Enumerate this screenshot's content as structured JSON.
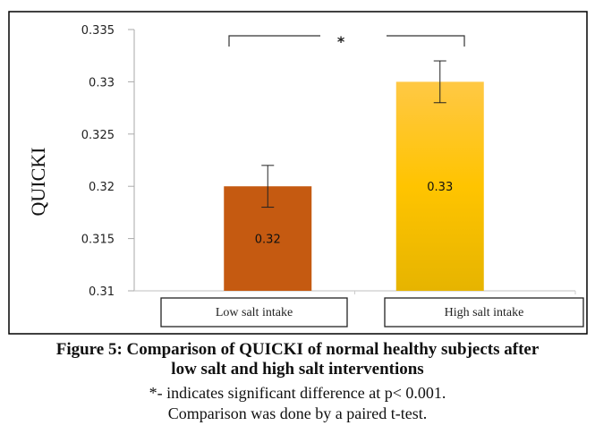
{
  "chart_data": {
    "type": "bar",
    "title": "",
    "xlabel": "",
    "ylabel": "QUICKI",
    "ylim": [
      0.31,
      0.335
    ],
    "yticks": [
      0.31,
      0.315,
      0.32,
      0.325,
      0.33,
      0.335
    ],
    "ytick_labels": [
      "0.31",
      "0.315",
      "0.32",
      "0.325",
      "0.33",
      "0.335"
    ],
    "grid": false,
    "legend": "none",
    "categories": [
      "Low salt intake",
      "High salt intake"
    ],
    "values": [
      0.32,
      0.33
    ],
    "data_labels": [
      "0.32",
      "0.33"
    ],
    "error": [
      0.002,
      0.002
    ],
    "colors": [
      "#C55A11",
      "#FFC000"
    ],
    "significance": {
      "between": [
        0,
        1
      ],
      "symbol": "*"
    }
  },
  "caption": {
    "title_line1": "Figure 5: Comparison of QUICKI of normal healthy subjects after",
    "title_line2": "low salt and high salt interventions",
    "note_line1": "*- indicates significant difference at p< 0.001.",
    "note_line2": "Comparison was done by a paired t-test."
  }
}
